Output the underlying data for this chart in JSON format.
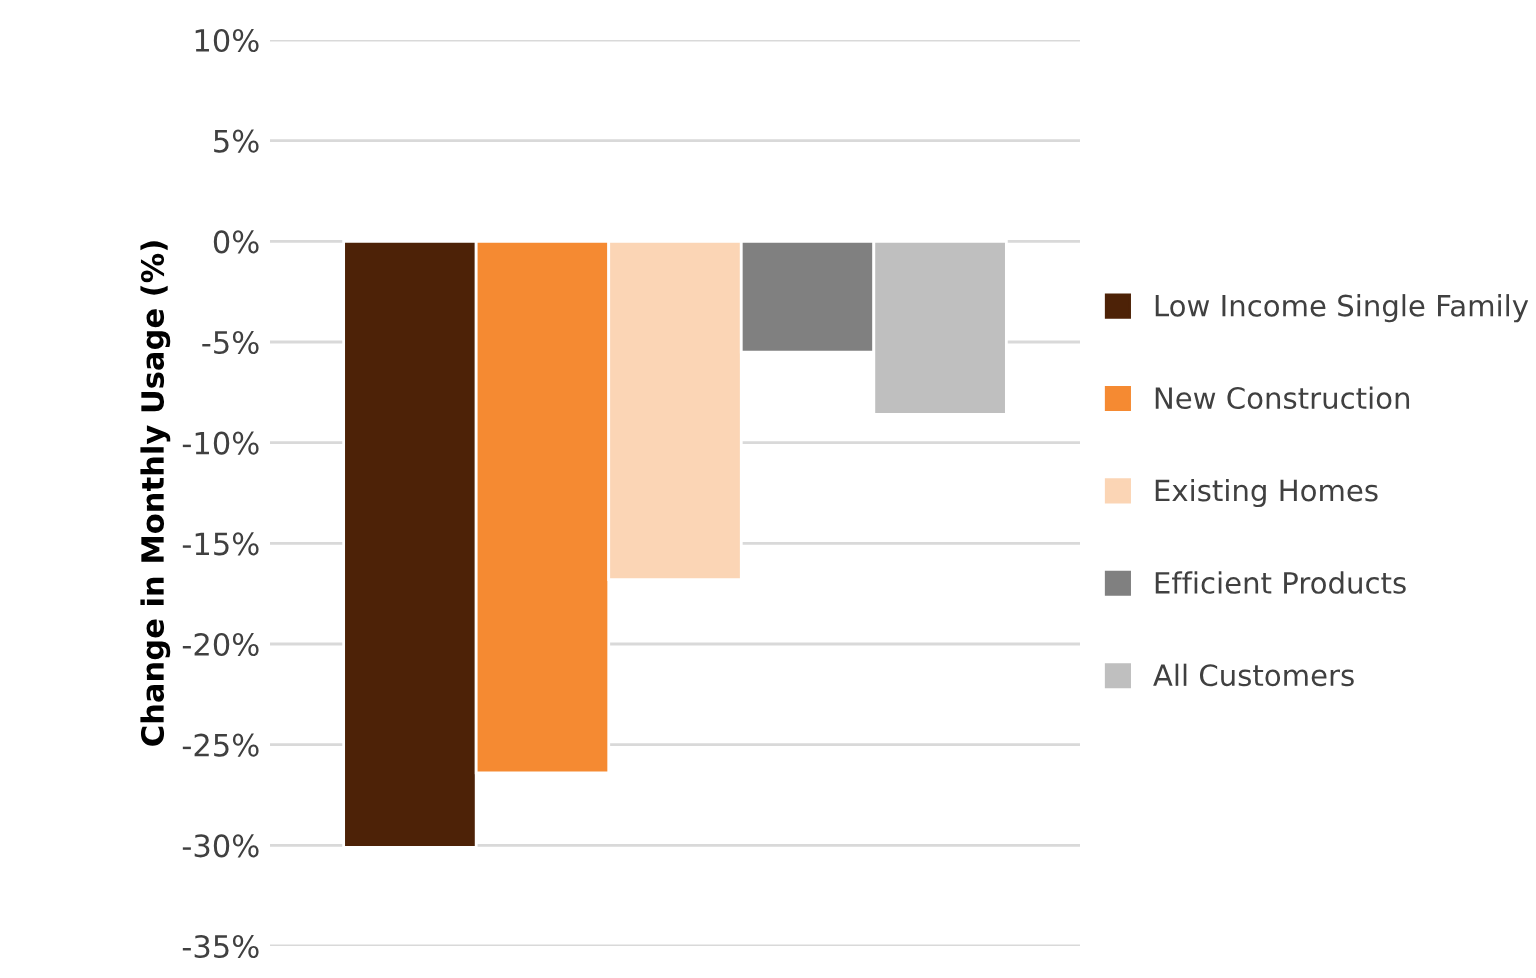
{
  "chart_data": {
    "type": "bar",
    "ylabel": "Change in Monthly Usage (%)",
    "categories": [
      null
    ],
    "series": [
      {
        "name": "Low Income Single Family",
        "color": "#4d2207",
        "values": [
          -30.1
        ]
      },
      {
        "name": "New Construction",
        "color": "#f58a32",
        "values": [
          -26.4
        ]
      },
      {
        "name": "Existing Homes",
        "color": "#fbd5b5",
        "values": [
          -16.8
        ]
      },
      {
        "name": "Efficient Products",
        "color": "#808080",
        "values": [
          -5.5
        ]
      },
      {
        "name": "All Customers",
        "color": "#bfbfbf",
        "values": [
          -8.6
        ]
      }
    ],
    "ylim": [
      -35,
      10
    ],
    "yticks": [
      {
        "value": 10,
        "label": "10%"
      },
      {
        "value": 5,
        "label": "5%"
      },
      {
        "value": 0,
        "label": "0%"
      },
      {
        "value": -5,
        "label": "-5%"
      },
      {
        "value": -10,
        "label": "-10%"
      },
      {
        "value": -15,
        "label": "-15%"
      },
      {
        "value": -20,
        "label": "-20%"
      },
      {
        "value": -25,
        "label": "-25%"
      },
      {
        "value": -30,
        "label": "-30%"
      },
      {
        "value": -35,
        "label": "-35%"
      }
    ],
    "grid": "y",
    "legend": "right"
  }
}
